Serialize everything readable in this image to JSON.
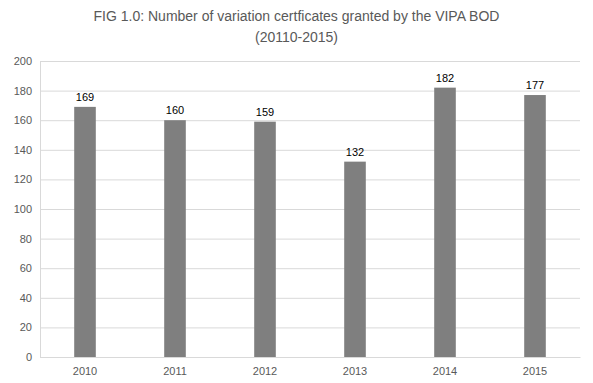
{
  "chart_data": {
    "type": "bar",
    "title": [
      "FIG 1.0: Number of variation certficates granted by the VIPA BOD",
      "(20110-2015)"
    ],
    "categories": [
      "2010",
      "2011",
      "2012",
      "2013",
      "2014",
      "2015"
    ],
    "values": [
      169,
      160,
      159,
      132,
      182,
      177
    ],
    "color": "#7f7f7f",
    "ylim": [
      0,
      200
    ],
    "yticks": [
      0,
      20,
      40,
      60,
      80,
      100,
      120,
      140,
      160,
      180,
      200
    ],
    "grid": true,
    "data_labels": true
  }
}
